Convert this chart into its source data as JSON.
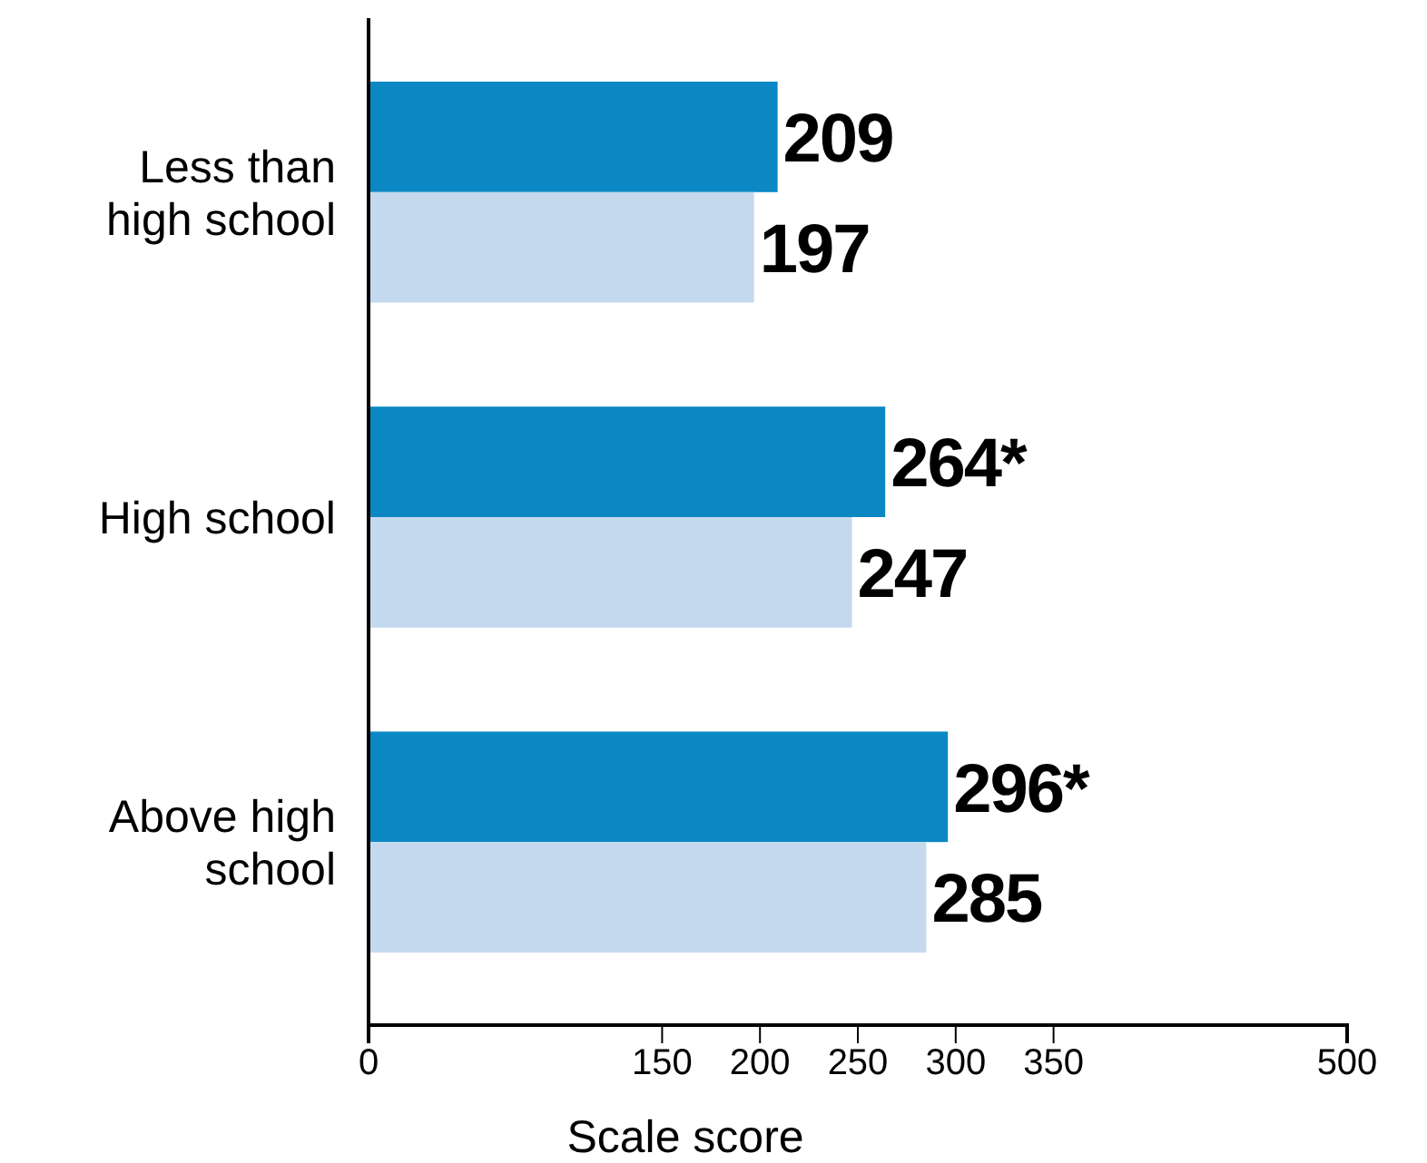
{
  "chart_data": {
    "type": "bar",
    "orientation": "horizontal",
    "xlabel": "Scale score",
    "categories": [
      "Less than high school",
      "High school",
      "Above high school"
    ],
    "series": [
      {
        "color": "#0b88c4",
        "values": [
          209,
          264,
          296
        ],
        "value_labels": [
          "209",
          "264*",
          "296*"
        ]
      },
      {
        "color": "#c5d9ee",
        "values": [
          197,
          247,
          285
        ],
        "value_labels": [
          "197",
          "247",
          "285"
        ]
      }
    ],
    "xlim": [
      0,
      500
    ],
    "xticks": [
      0,
      150,
      200,
      250,
      300,
      350,
      500
    ]
  }
}
